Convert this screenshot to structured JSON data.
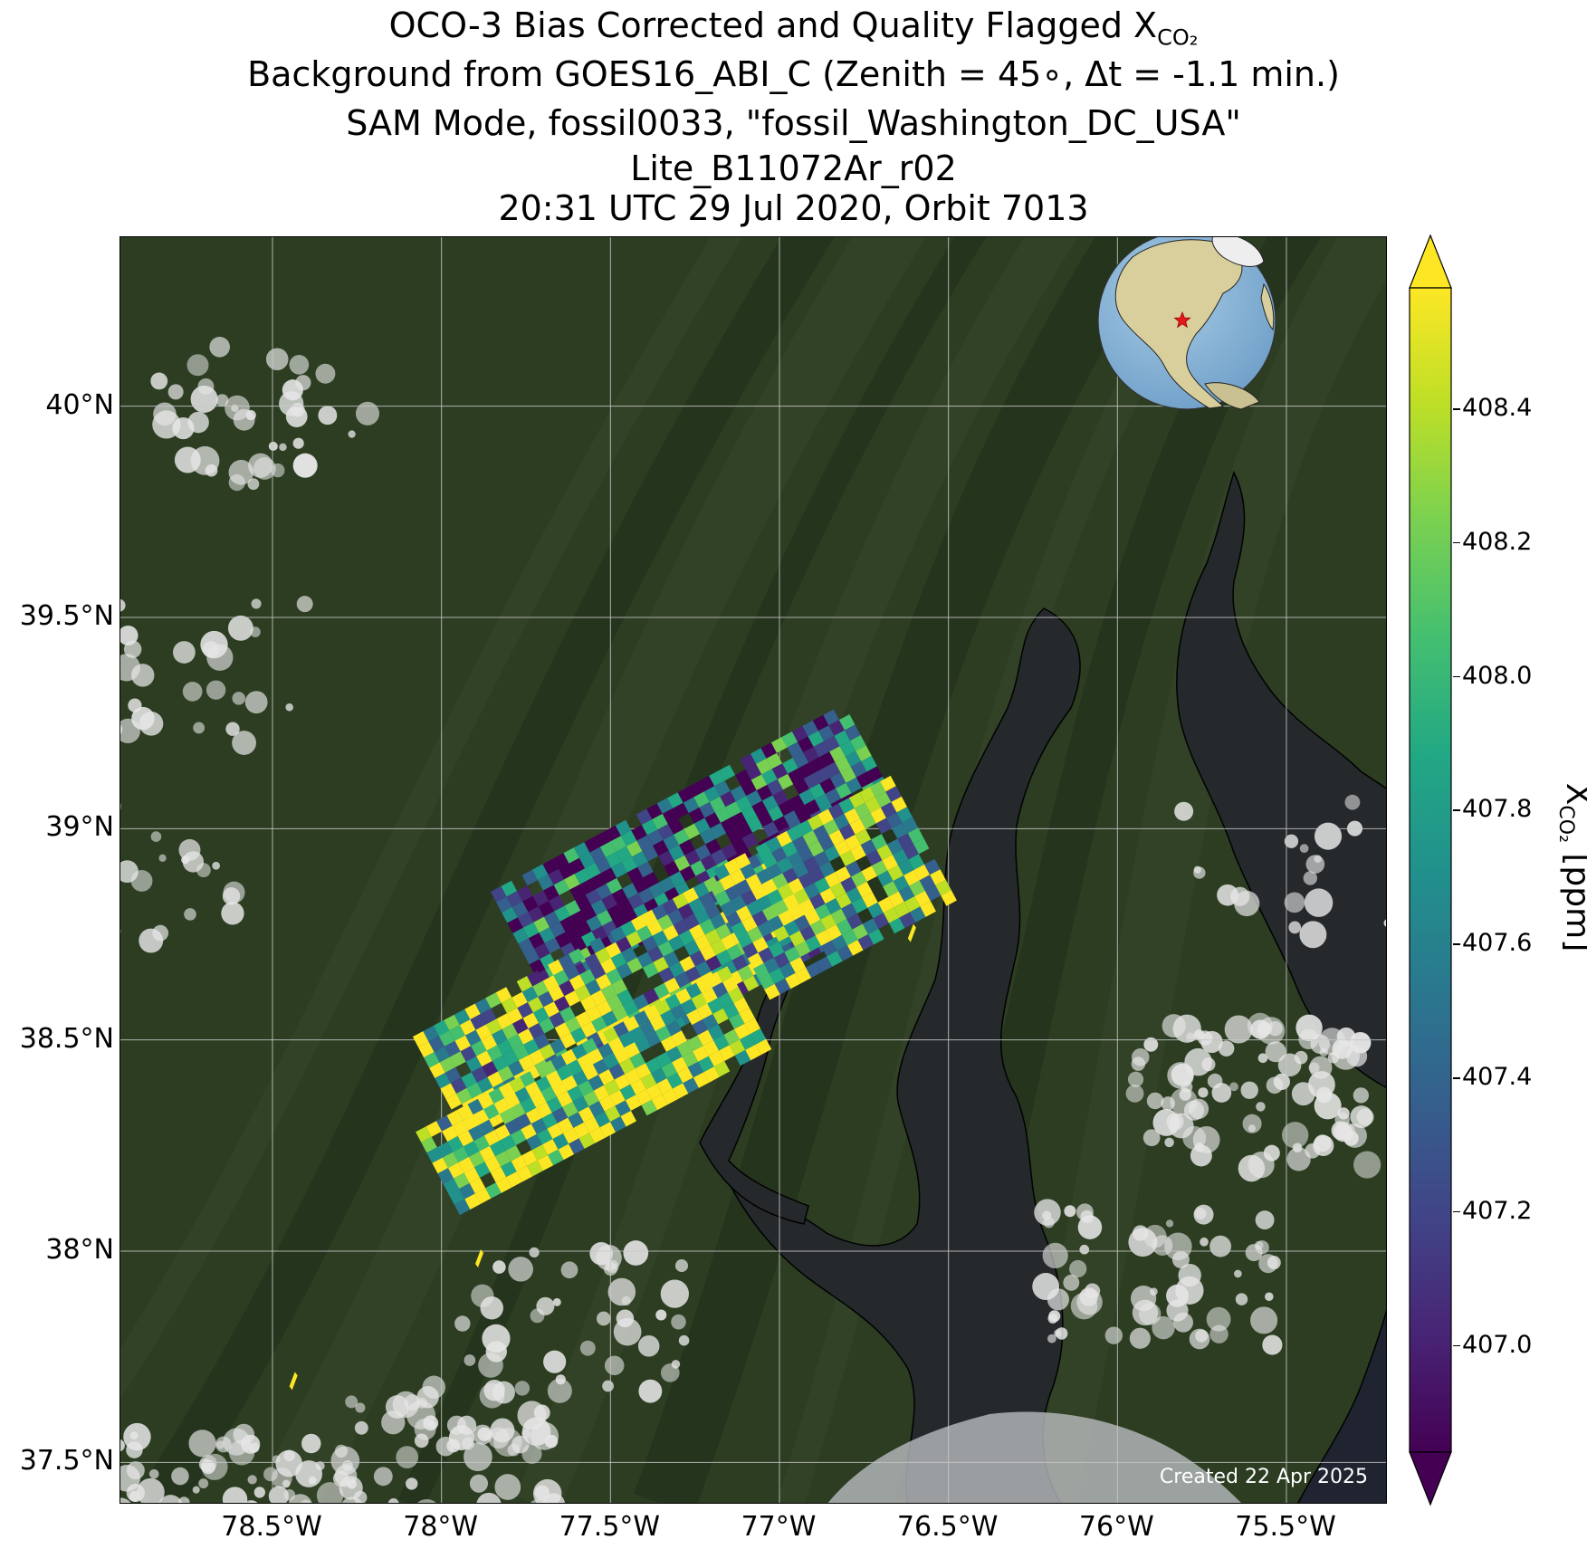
{
  "title": {
    "line1_prefix": "OCO-3 Bias Corrected and Quality Flagged X",
    "line1_sub": "CO₂",
    "line2": "Background from GOES16_ABI_C (Zenith = 45∘, Δt = -1.1 min.)",
    "line3": "SAM Mode, fossil0033, \"fossil_Washington_DC_USA\"",
    "line4": "Lite_B11072Ar_r02",
    "line5": "20:31 UTC 29 Jul 2020, Orbit 7013"
  },
  "map": {
    "lon_range": [
      -78.95,
      -75.2
    ],
    "lat_range": [
      37.4,
      40.4
    ],
    "lat_ticks": [
      {
        "value": 40.0,
        "label": "40°N"
      },
      {
        "value": 39.5,
        "label": "39.5°N"
      },
      {
        "value": 39.0,
        "label": "39°N"
      },
      {
        "value": 38.5,
        "label": "38.5°N"
      },
      {
        "value": 38.0,
        "label": "38°N"
      },
      {
        "value": 37.5,
        "label": "37.5°N"
      }
    ],
    "lon_ticks": [
      {
        "value": -78.5,
        "label": "78.5°W"
      },
      {
        "value": -78.0,
        "label": "78°W"
      },
      {
        "value": -77.5,
        "label": "77.5°W"
      },
      {
        "value": -77.0,
        "label": "77°W"
      },
      {
        "value": -76.5,
        "label": "76.5°W"
      },
      {
        "value": -76.0,
        "label": "76°W"
      },
      {
        "value": -75.5,
        "label": "75.5°W"
      }
    ],
    "credit": "Created 22 Apr 2025",
    "inset_globe": {
      "center_lon": -77.0,
      "center_lat": 38.9,
      "target_marker": "red-star"
    },
    "colors": {
      "land": "#2c3d22",
      "water": "#25292c",
      "grid": "#c8c8c8",
      "cloud": "#e6e6e6"
    }
  },
  "colorbar": {
    "label_prefix": "X",
    "label_sub": "CO₂",
    "label_suffix": " [ppm]",
    "vmin": 406.84,
    "vmax": 408.58,
    "ticks": [
      "407.0",
      "407.2",
      "407.4",
      "407.6",
      "407.8",
      "408.0",
      "408.2",
      "408.4"
    ],
    "colormap": "viridis",
    "extend": "both"
  }
}
